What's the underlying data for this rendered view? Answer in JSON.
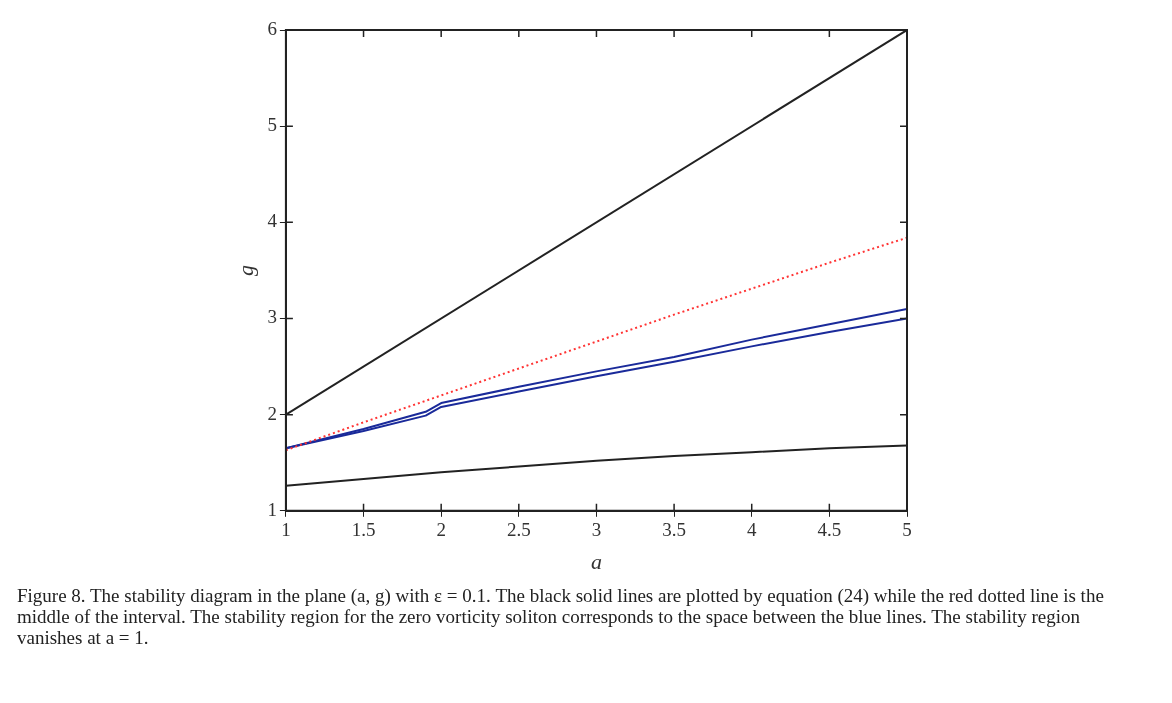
{
  "chart_data": {
    "type": "line",
    "xlabel": "a",
    "ylabel": "g",
    "xlim": [
      1,
      5
    ],
    "ylim": [
      1,
      6
    ],
    "xticks": [
      1,
      1.5,
      2,
      2.5,
      3,
      3.5,
      4,
      4.5,
      5
    ],
    "yticks": [
      1,
      2,
      3,
      4,
      5,
      6
    ],
    "grid": false,
    "legend": false,
    "marker": "none",
    "series": [
      {
        "color": "#222222",
        "line_style": "solid",
        "x": [
          1,
          5
        ],
        "values": [
          2,
          6
        ]
      },
      {
        "color": "#222222",
        "line_style": "solid",
        "x": [
          1,
          1.5,
          2,
          2.5,
          3,
          3.5,
          4,
          4.5,
          5
        ],
        "values": [
          1.26,
          1.33,
          1.4,
          1.46,
          1.52,
          1.57,
          1.61,
          1.65,
          1.68
        ]
      },
      {
        "color": "#ff3333",
        "line_style": "dotted",
        "x": [
          1,
          1.5,
          2,
          2.5,
          3,
          3.5,
          4,
          4.5,
          5
        ],
        "values": [
          1.63,
          1.92,
          2.2,
          2.48,
          2.76,
          3.04,
          3.31,
          3.58,
          3.84
        ]
      },
      {
        "color": "#1a2a9a",
        "line_style": "solid",
        "x": [
          1,
          1.5,
          1.9,
          2,
          2.5,
          3,
          3.5,
          4,
          4.5,
          5
        ],
        "values": [
          1.65,
          1.85,
          2.03,
          2.12,
          2.29,
          2.45,
          2.6,
          2.78,
          2.94,
          3.1
        ]
      },
      {
        "color": "#1a2a9a",
        "line_style": "solid",
        "x": [
          1,
          1.5,
          1.9,
          2,
          2.5,
          3,
          3.5,
          4,
          4.5,
          5
        ],
        "values": [
          1.65,
          1.83,
          1.99,
          2.08,
          2.24,
          2.4,
          2.55,
          2.71,
          2.86,
          3.0
        ]
      }
    ],
    "annotations": [
      "Figure 8. The stability diagram in the plane (a, g) with ε = 0.1. The black solid lines are plotted by equation (24) while the red dotted line is the middle of the interval. The stability region for the zero vorticity soliton corresponds to the space between the blue lines. The stability region vanishes at a = 1."
    ]
  }
}
